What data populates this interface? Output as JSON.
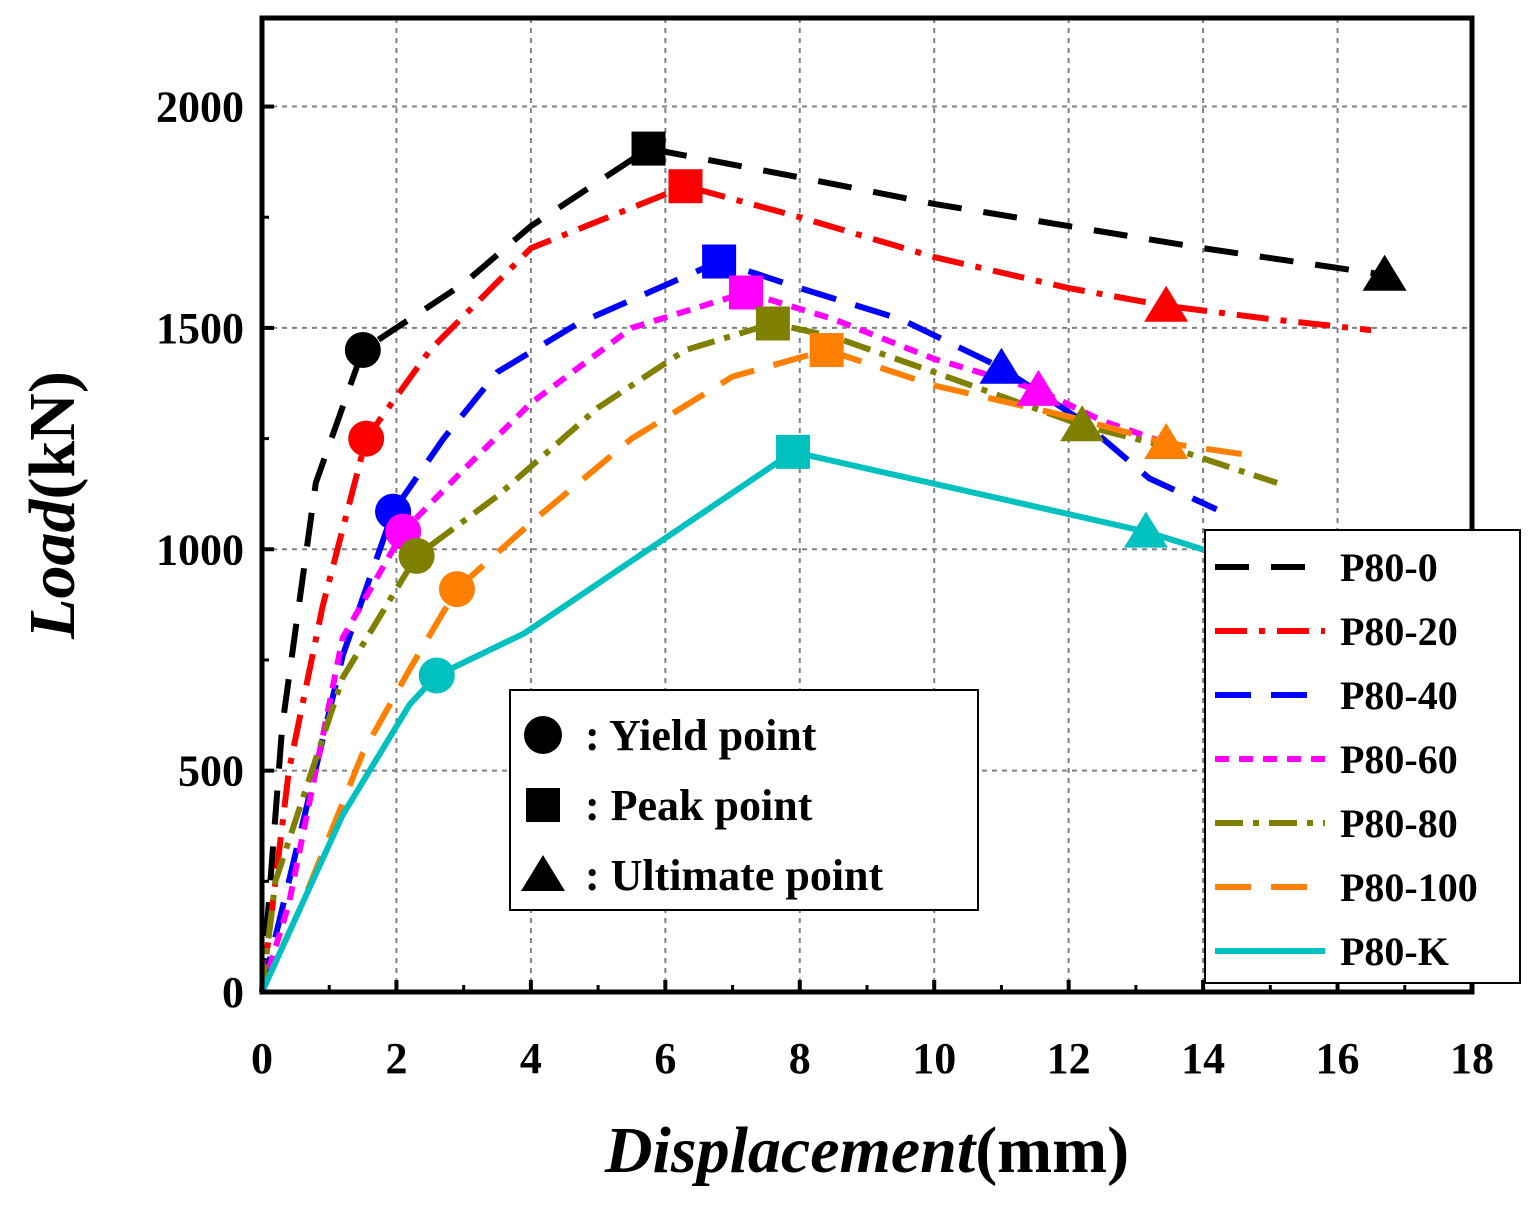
{
  "chart_data": {
    "type": "line",
    "xlabel_italic": "Displacement",
    "xlabel_unit": "(mm)",
    "ylabel_italic": "Load",
    "ylabel_unit": "(kN)",
    "xlim": [
      0,
      18
    ],
    "ylim": [
      0,
      2200
    ],
    "xticks": [
      0,
      2,
      4,
      6,
      8,
      10,
      12,
      14,
      16,
      18
    ],
    "yticks": [
      0,
      500,
      1000,
      1500,
      2000
    ],
    "grid": true,
    "legend_position": "lower-right",
    "series": [
      {
        "name": "P80-0",
        "color": "#000000",
        "dash": "34 22",
        "points": [
          [
            0,
            0
          ],
          [
            0.3,
            600
          ],
          [
            0.8,
            1150
          ],
          [
            1.5,
            1450
          ],
          [
            3,
            1600
          ],
          [
            4,
            1730
          ],
          [
            5.75,
            1905
          ],
          [
            8,
            1840
          ],
          [
            10,
            1780
          ],
          [
            12,
            1730
          ],
          [
            14,
            1680
          ],
          [
            16.7,
            1620
          ]
        ],
        "yield": [
          1.5,
          1450
        ],
        "peak": [
          5.75,
          1905
        ],
        "ultimate": [
          16.7,
          1620
        ]
      },
      {
        "name": "P80-20",
        "color": "#ff0000",
        "dash": "32 12 6 12",
        "points": [
          [
            0,
            0
          ],
          [
            0.4,
            500
          ],
          [
            0.9,
            870
          ],
          [
            1.55,
            1250
          ],
          [
            2.5,
            1450
          ],
          [
            4,
            1680
          ],
          [
            6.3,
            1820
          ],
          [
            8,
            1750
          ],
          [
            10,
            1660
          ],
          [
            12,
            1590
          ],
          [
            13.45,
            1550
          ],
          [
            15,
            1520
          ],
          [
            16.5,
            1495
          ]
        ],
        "yield": [
          1.55,
          1250
        ],
        "peak": [
          6.3,
          1820
        ],
        "ultimate": [
          13.45,
          1550
        ]
      },
      {
        "name": "P80-40",
        "color": "#0000ff",
        "dash": "36 20",
        "points": [
          [
            0,
            0
          ],
          [
            0.4,
            250
          ],
          [
            1.2,
            760
          ],
          [
            1.95,
            1085
          ],
          [
            2.7,
            1250
          ],
          [
            3.5,
            1400
          ],
          [
            4.7,
            1510
          ],
          [
            6.8,
            1650
          ],
          [
            8,
            1590
          ],
          [
            9.5,
            1520
          ],
          [
            11,
            1410
          ],
          [
            12.2,
            1290
          ],
          [
            13.2,
            1160
          ],
          [
            14.2,
            1090
          ]
        ],
        "yield": [
          1.95,
          1085
        ],
        "peak": [
          6.8,
          1650
        ],
        "ultimate": [
          11,
          1410
        ]
      },
      {
        "name": "P80-60",
        "color": "#ff00ff",
        "dash": "14 10",
        "points": [
          [
            0,
            0
          ],
          [
            0.4,
            200
          ],
          [
            1.2,
            800
          ],
          [
            2.1,
            1040
          ],
          [
            3,
            1180
          ],
          [
            4,
            1330
          ],
          [
            5.5,
            1500
          ],
          [
            7.2,
            1580
          ],
          [
            8.5,
            1520
          ],
          [
            10,
            1430
          ],
          [
            11.55,
            1360
          ],
          [
            12.5,
            1290
          ],
          [
            13.45,
            1240
          ]
        ],
        "yield": [
          2.1,
          1040
        ],
        "peak": [
          7.2,
          1580
        ],
        "ultimate": [
          11.55,
          1360
        ]
      },
      {
        "name": "P80-80",
        "color": "#808000",
        "dash": "28 10 6 10",
        "points": [
          [
            0,
            0
          ],
          [
            0.2,
            250
          ],
          [
            1.2,
            710
          ],
          [
            2.3,
            985
          ],
          [
            3.5,
            1120
          ],
          [
            5,
            1320
          ],
          [
            6.3,
            1450
          ],
          [
            7.6,
            1510
          ],
          [
            8.5,
            1480
          ],
          [
            10,
            1400
          ],
          [
            12.2,
            1280
          ],
          [
            13.5,
            1230
          ],
          [
            15.1,
            1150
          ]
        ],
        "yield": [
          2.3,
          985
        ],
        "peak": [
          7.6,
          1510
        ],
        "ultimate": [
          12.2,
          1280
        ]
      },
      {
        "name": "P80-100",
        "color": "#ff8000",
        "dash": "36 20",
        "points": [
          [
            0,
            0
          ],
          [
            0.6,
            200
          ],
          [
            1.5,
            540
          ],
          [
            2.2,
            730
          ],
          [
            2.9,
            910
          ],
          [
            4,
            1060
          ],
          [
            5.5,
            1250
          ],
          [
            7,
            1390
          ],
          [
            8.4,
            1450
          ],
          [
            10,
            1370
          ],
          [
            12,
            1300
          ],
          [
            13.45,
            1240
          ],
          [
            14.8,
            1210
          ]
        ],
        "yield": [
          2.9,
          910
        ],
        "peak": [
          8.4,
          1450
        ],
        "ultimate": [
          13.45,
          1240
        ]
      },
      {
        "name": "P80-K",
        "color": "#00c0c0",
        "dash": "",
        "points": [
          [
            0,
            0
          ],
          [
            1.2,
            400
          ],
          [
            2.2,
            650
          ],
          [
            2.6,
            715
          ],
          [
            3.9,
            810
          ],
          [
            7.9,
            1220
          ],
          [
            13.15,
            1040
          ],
          [
            14.2,
            990
          ]
        ],
        "yield": [
          2.6,
          715
        ],
        "peak": [
          7.9,
          1220
        ],
        "ultimate": [
          13.15,
          1040
        ]
      }
    ],
    "marker_legend": [
      {
        "symbol": "circle",
        "label": ": Yield point"
      },
      {
        "symbol": "square",
        "label": ": Peak point"
      },
      {
        "symbol": "triangle",
        "label": ": Ultimate point"
      }
    ]
  }
}
